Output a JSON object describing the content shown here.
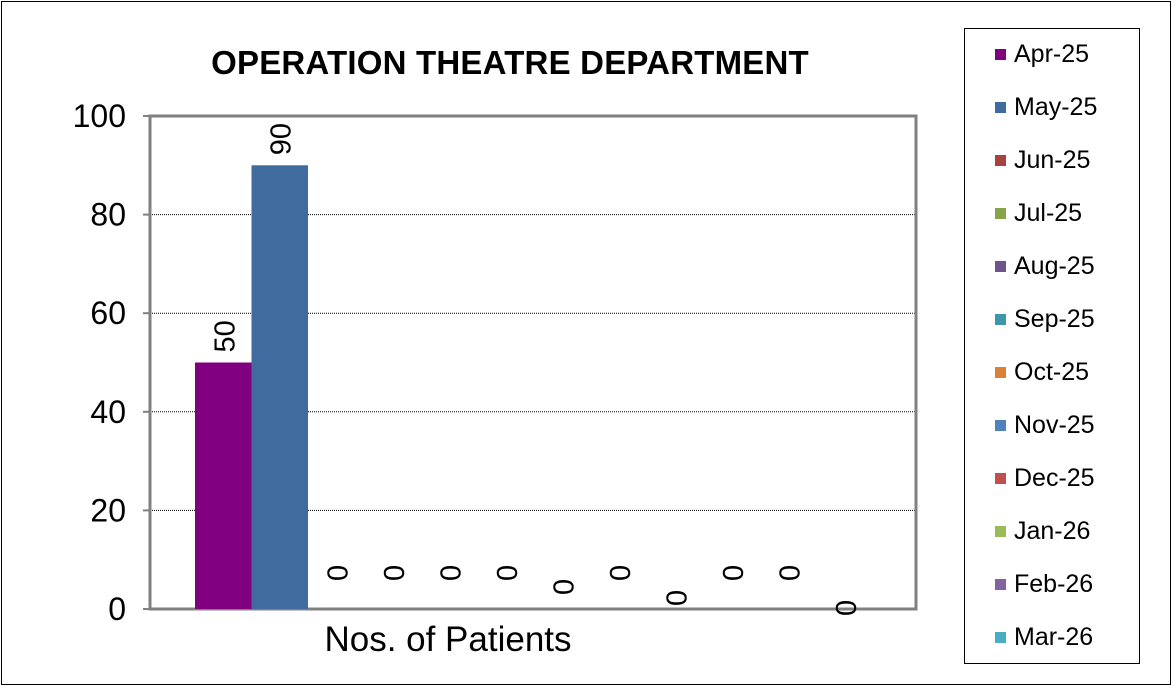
{
  "chart_data": {
    "type": "bar",
    "title": "OPERATION THEATRE DEPARTMENT",
    "xlabel": "Nos. of Patients",
    "ylabel": "",
    "ylim": [
      0,
      100
    ],
    "yticks": [
      0,
      20,
      40,
      60,
      80,
      100
    ],
    "categories": [
      "Nos. of Patients"
    ],
    "grid": true,
    "legend_position": "right",
    "series": [
      {
        "name": "Apr-25",
        "values": [
          50
        ],
        "color": "#800080"
      },
      {
        "name": "May-25",
        "values": [
          90
        ],
        "color": "#3F6B9E"
      },
      {
        "name": "Jun-25",
        "values": [
          0
        ],
        "color": "#A8423F"
      },
      {
        "name": "Jul-25",
        "values": [
          0
        ],
        "color": "#86A44A"
      },
      {
        "name": "Aug-25",
        "values": [
          0
        ],
        "color": "#6E548D"
      },
      {
        "name": "Sep-25",
        "values": [
          0
        ],
        "color": "#3D96AE"
      },
      {
        "name": "Oct-25",
        "values": [
          0
        ],
        "color": "#DA8137"
      },
      {
        "name": "Nov-25",
        "values": [
          0
        ],
        "color": "#4F81BD"
      },
      {
        "name": "Dec-25",
        "values": [
          0
        ],
        "color": "#C0504D"
      },
      {
        "name": "Jan-26",
        "values": [
          0
        ],
        "color": "#9BBB59"
      },
      {
        "name": "Feb-26",
        "values": [
          0
        ],
        "color": "#8064A2"
      },
      {
        "name": "Mar-26",
        "values": [
          0
        ],
        "color": "#4BACC6"
      }
    ]
  }
}
